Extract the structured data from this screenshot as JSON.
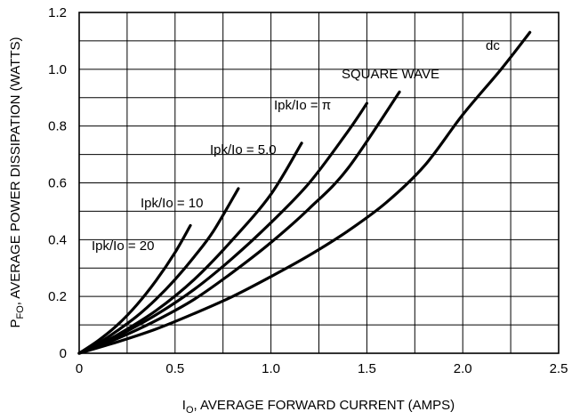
{
  "chart_data": {
    "type": "line",
    "title": "",
    "xlabel": {
      "prefix": "I",
      "subscript": "O",
      "text": ", AVERAGE FORWARD CURRENT (AMPS)"
    },
    "ylabel": {
      "prefix": "P",
      "subscript": "FO",
      "text": ", AVERAGE POWER DISSIPATION (WATTS)"
    },
    "xlim": [
      0,
      2.5
    ],
    "ylim": [
      0,
      1.2
    ],
    "x_ticks": [
      0,
      0.5,
      1.0,
      1.5,
      2.0,
      2.5
    ],
    "x_tick_labels": [
      "0",
      "0.5",
      "1.0",
      "1.5",
      "2.0",
      "2.5"
    ],
    "y_ticks": [
      0,
      0.2,
      0.4,
      0.6,
      0.8,
      1.0,
      1.2
    ],
    "y_tick_labels": [
      "0",
      "0.2",
      "0.4",
      "0.6",
      "0.8",
      "1.0",
      "1.2"
    ],
    "grid": true,
    "series": [
      {
        "name": "Ipk/Io = 20",
        "x": [
          0,
          0.1,
          0.2,
          0.3,
          0.4,
          0.5,
          0.58
        ],
        "y": [
          0,
          0.045,
          0.1,
          0.17,
          0.255,
          0.355,
          0.45
        ]
      },
      {
        "name": "Ipk/Io = 10",
        "x": [
          0,
          0.1,
          0.2,
          0.3,
          0.4,
          0.5,
          0.6,
          0.7,
          0.83
        ],
        "y": [
          0,
          0.035,
          0.08,
          0.13,
          0.19,
          0.26,
          0.34,
          0.43,
          0.58
        ]
      },
      {
        "name": "Ipk/Io = 5.0",
        "x": [
          0,
          0.1,
          0.2,
          0.4,
          0.6,
          0.8,
          1.0,
          1.16
        ],
        "y": [
          0,
          0.03,
          0.065,
          0.15,
          0.26,
          0.4,
          0.56,
          0.74
        ]
      },
      {
        "name": "Ipk/Io = π",
        "x": [
          0,
          0.1,
          0.2,
          0.4,
          0.6,
          0.8,
          1.0,
          1.2,
          1.4,
          1.5
        ],
        "y": [
          0,
          0.028,
          0.06,
          0.135,
          0.225,
          0.335,
          0.46,
          0.6,
          0.78,
          0.88
        ]
      },
      {
        "name": "SQUARE WAVE",
        "x": [
          0,
          0.2,
          0.4,
          0.6,
          0.8,
          1.0,
          1.2,
          1.4,
          1.67
        ],
        "y": [
          0,
          0.052,
          0.115,
          0.19,
          0.285,
          0.39,
          0.51,
          0.65,
          0.92
        ]
      },
      {
        "name": "dc",
        "x": [
          0,
          0.2,
          0.4,
          0.6,
          0.8,
          1.0,
          1.2,
          1.4,
          1.6,
          1.8,
          2.0,
          2.2,
          2.35
        ],
        "y": [
          0,
          0.04,
          0.085,
          0.14,
          0.2,
          0.27,
          0.345,
          0.43,
          0.53,
          0.66,
          0.84,
          1.0,
          1.13
        ]
      }
    ],
    "annotations": [
      "Ipk/Io = 20",
      "Ipk/Io = 10",
      "Ipk/Io = 5.0",
      "Ipk/Io = π",
      "SQUARE WAVE",
      "dc"
    ]
  }
}
